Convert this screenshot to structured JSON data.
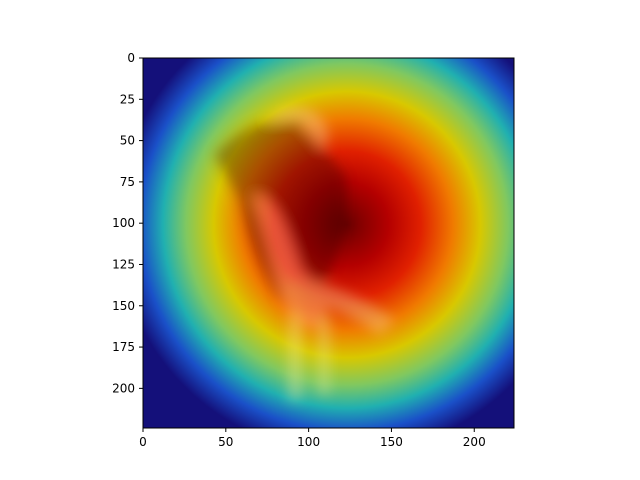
{
  "chart_data": {
    "type": "heatmap",
    "title": "",
    "xlabel": "",
    "ylabel": "",
    "xlim": [
      0,
      224
    ],
    "ylim": [
      224,
      0
    ],
    "x_ticks": [
      0,
      50,
      100,
      150,
      200
    ],
    "y_ticks": [
      0,
      25,
      50,
      75,
      100,
      125,
      150,
      175,
      200
    ],
    "x_tick_labels": [
      "0",
      "50",
      "100",
      "150",
      "200"
    ],
    "y_tick_labels": [
      "0",
      "25",
      "50",
      "75",
      "100",
      "125",
      "150",
      "175",
      "200"
    ],
    "colormap": "jet",
    "overlay": "heatmap blended over photograph of a seated person with a chair",
    "heat_peak": {
      "x": 85,
      "y": 85
    },
    "heat_spread": {
      "sx": 95,
      "sy": 80
    },
    "grid": false,
    "legend": "none"
  }
}
